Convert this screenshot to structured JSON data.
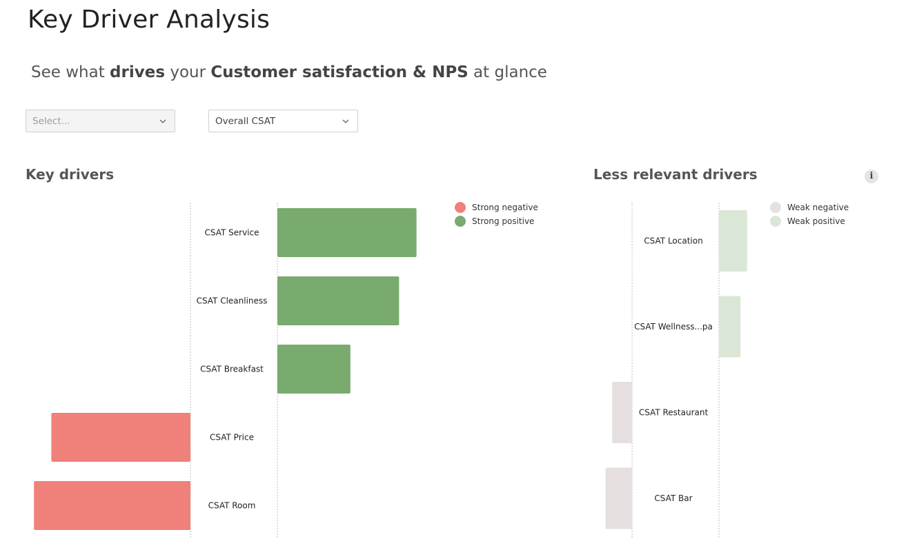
{
  "header": {
    "title": "Key Driver Analysis",
    "subtitle": {
      "part1": "See what ",
      "bold1": "drives",
      "part2": " your ",
      "bold2": "Customer satisfaction & NPS",
      "part3": " at glance"
    }
  },
  "filters": {
    "select_a": {
      "value": "Select...",
      "icon": "chevron-down-icon"
    },
    "select_b": {
      "value": "Overall CSAT",
      "icon": "chevron-down-icon"
    }
  },
  "key_drivers": {
    "title": "Key drivers"
  },
  "less_relevant": {
    "title": "Less relevant drivers",
    "info_icon": "i"
  },
  "colors": {
    "strong_negative": "#ef807a",
    "strong_positive": "#79ab6e",
    "weak_negative": "#e5dfdf",
    "weak_positive": "#dbe7d6",
    "axis_line": "#bdbdbd"
  },
  "chart_data": [
    {
      "type": "bar",
      "orientation": "horizontal-diverging",
      "title": "Key drivers",
      "categories": [
        "CSAT Service",
        "CSAT Cleanliness",
        "CSAT Breakfast",
        "CSAT Price",
        "CSAT Room"
      ],
      "values": [
        0.8,
        0.7,
        0.42,
        -0.8,
        -0.9
      ],
      "xlim": [
        -1,
        1
      ],
      "legend": [
        {
          "label": "Strong negative",
          "color": "#ef807a"
        },
        {
          "label": "Strong positive",
          "color": "#79ab6e"
        }
      ],
      "legend_position": "top-right",
      "grid": false
    },
    {
      "type": "bar",
      "orientation": "horizontal-diverging",
      "title": "Less relevant drivers",
      "categories": [
        "CSAT Location",
        "CSAT Wellness...pa",
        "CSAT Restaurant",
        "CSAT Bar"
      ],
      "values": [
        0.17,
        0.13,
        -0.12,
        -0.16
      ],
      "xlim": [
        -1,
        1
      ],
      "legend": [
        {
          "label": "Weak negative",
          "color": "#e5dfdf"
        },
        {
          "label": "Weak positive",
          "color": "#dbe7d6"
        }
      ],
      "legend_position": "top-right",
      "grid": false
    }
  ]
}
